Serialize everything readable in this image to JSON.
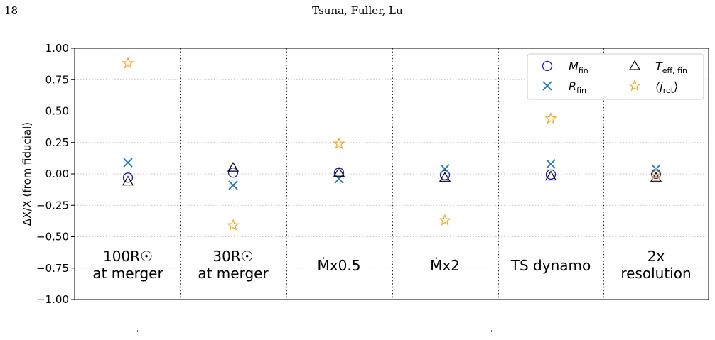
{
  "header": {
    "page_number": "18",
    "running_head": "Tsuna, Fuller, Lu"
  },
  "colors": {
    "M_fin": "#1f1fb4",
    "R_fin": "#1f77b4",
    "T_eff_fin": "#000000",
    "j_rot": "#f5a623",
    "grid": "#b0b0b0"
  },
  "footer": {
    "left_mark": "\"",
    "right_mark": "'"
  },
  "chart_data": {
    "type": "scatter",
    "ylabel": "ΔX/X (from fiducial)",
    "ylim": [
      -1.0,
      1.0
    ],
    "yticks": [
      1.0,
      0.75,
      0.5,
      0.25,
      0.0,
      -0.25,
      -0.5,
      -0.75,
      -1.0
    ],
    "ytick_labels": [
      "1.00",
      "0.75",
      "0.50",
      "0.25",
      "0.00",
      "−0.25",
      "−0.50",
      "−0.75",
      "−1.00"
    ],
    "grid": "horizontal dotted",
    "legend_position": "top-right",
    "categories": [
      {
        "line1": "100R☉",
        "line2": "at merger"
      },
      {
        "line1": "30R☉",
        "line2": "at merger"
      },
      {
        "line1": "Ṁx0.5",
        "line2": ""
      },
      {
        "line1": "Ṁx2",
        "line2": ""
      },
      {
        "line1": "TS dynamo",
        "line2": ""
      },
      {
        "line1": "2x",
        "line2": "resolution"
      }
    ],
    "series": [
      {
        "name": "M_fin",
        "label": "M",
        "sub": "fin",
        "marker": "circle",
        "values": [
          -0.03,
          0.01,
          0.01,
          -0.01,
          -0.005,
          0.0
        ]
      },
      {
        "name": "R_fin",
        "label": "R",
        "sub": "fin",
        "marker": "x",
        "values": [
          0.09,
          -0.09,
          -0.04,
          0.04,
          0.08,
          0.04
        ]
      },
      {
        "name": "T_eff_fin",
        "label": "T",
        "sub": "eff, fin",
        "marker": "triangle",
        "values": [
          -0.06,
          0.05,
          0.01,
          -0.03,
          -0.02,
          -0.03
        ]
      },
      {
        "name": "j_rot",
        "label": "⟨j",
        "sub": "rot",
        "suffix": "⟩",
        "marker": "star",
        "values": [
          0.88,
          -0.41,
          0.24,
          -0.37,
          0.44,
          0.0
        ]
      }
    ]
  }
}
